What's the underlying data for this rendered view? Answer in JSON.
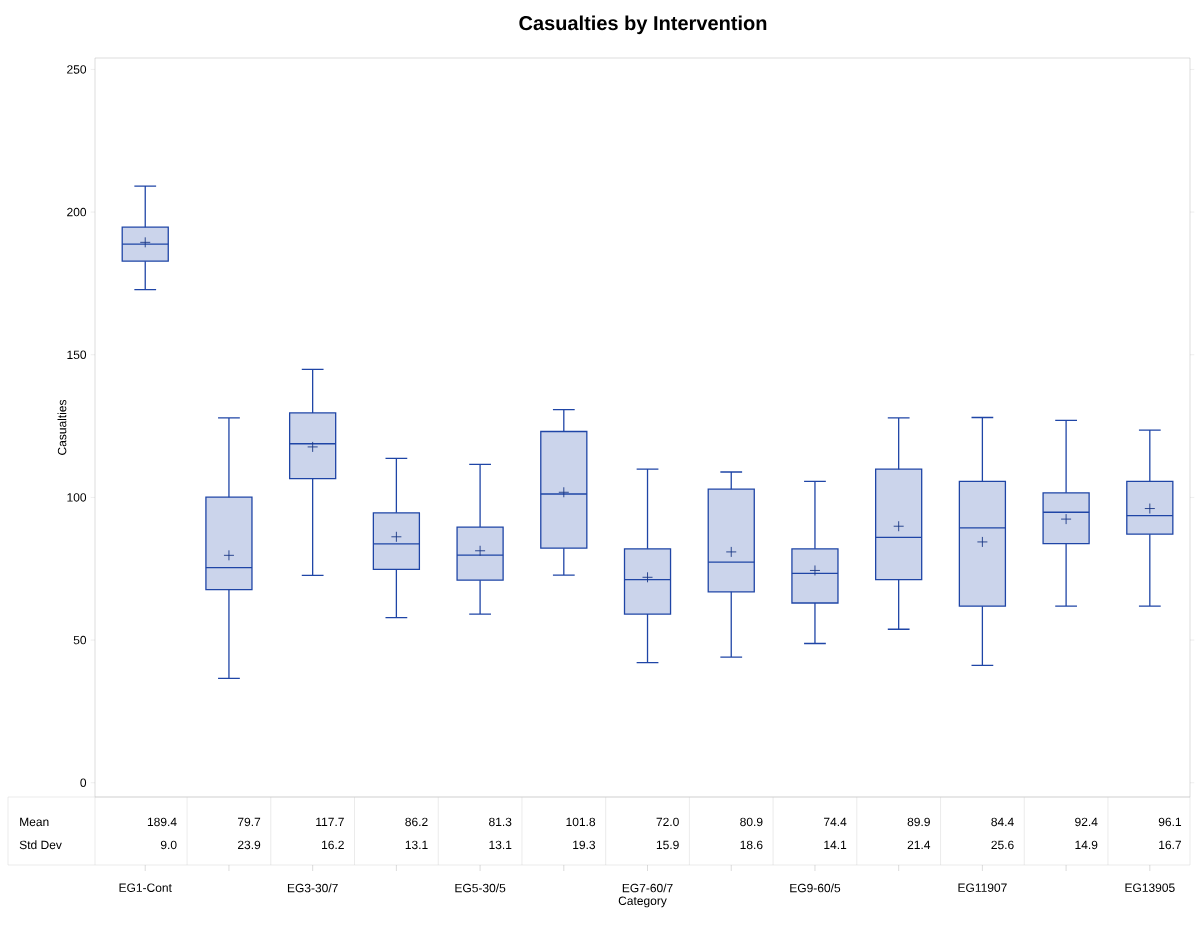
{
  "chart_data": {
    "type": "box",
    "title": "Casualties by Intervention",
    "xlabel": "Category",
    "ylabel": "Casualties",
    "categories": [
      "EG1-Cont",
      null,
      "EG3-30/7",
      null,
      "EG5-30/5",
      null,
      "EG7-60/7",
      null,
      "EG9-60/5",
      null,
      "EG11907",
      null,
      "EG13905"
    ],
    "ylim": [
      -5,
      254
    ],
    "yticks": [
      0,
      50,
      100,
      150,
      200,
      250
    ],
    "grid": false,
    "marker": "cross",
    "series": [
      {
        "color": "#1f45a6",
        "boxes": [
          {
            "low": 172.8,
            "q1": 182.8,
            "median": 188.8,
            "q3": 194.7,
            "high": 209.1,
            "mean": 189.4
          },
          {
            "low": 36.6,
            "q1": 67.7,
            "median": 75.4,
            "q3": 100.1,
            "high": 127.9,
            "mean": 79.7
          },
          {
            "low": 72.7,
            "q1": 106.6,
            "median": 118.8,
            "q3": 129.6,
            "high": 144.9,
            "mean": 117.7
          },
          {
            "low": 57.9,
            "q1": 74.8,
            "median": 83.7,
            "q3": 94.6,
            "high": 113.7,
            "mean": 86.2
          },
          {
            "low": 59.1,
            "q1": 71.0,
            "median": 79.8,
            "q3": 89.6,
            "high": 111.6,
            "mean": 81.3
          },
          {
            "low": 72.8,
            "q1": 82.2,
            "median": 101.2,
            "q3": 123.1,
            "high": 130.8,
            "mean": 101.8
          },
          {
            "low": 42.1,
            "q1": 59.1,
            "median": 71.2,
            "q3": 82.0,
            "high": 109.9,
            "mean": 72.0
          },
          {
            "low": 44.0,
            "q1": 66.9,
            "median": 77.3,
            "q3": 102.9,
            "high": 108.9,
            "mean": 80.9
          },
          {
            "low": 48.8,
            "q1": 63.0,
            "median": 73.4,
            "q3": 82.0,
            "high": 105.6,
            "mean": 74.4
          },
          {
            "low": 53.8,
            "q1": 71.2,
            "median": 86.0,
            "q3": 109.9,
            "high": 127.9,
            "mean": 89.9
          },
          {
            "low": 41.1,
            "q1": 61.9,
            "median": 89.3,
            "q3": 105.6,
            "high": 128.0,
            "mean": 84.4
          },
          {
            "low": 61.9,
            "q1": 83.8,
            "median": 94.8,
            "q3": 101.6,
            "high": 127.0,
            "mean": 92.4
          },
          {
            "low": 61.9,
            "q1": 87.1,
            "median": 93.6,
            "q3": 105.6,
            "high": 123.6,
            "mean": 96.1
          }
        ]
      }
    ],
    "annotations": [
      "Mean",
      "Std Dev",
      "189.4",
      "79.7",
      "117.7",
      "86.2",
      "81.3",
      "101.8",
      "72.0",
      "80.9",
      "74.4",
      "89.9",
      "84.4",
      "92.4",
      "96.1",
      "9.0",
      "23.9",
      "16.2",
      "13.1",
      "13.1",
      "19.3",
      "15.9",
      "18.6",
      "14.1",
      "21.4",
      "25.6",
      "14.9",
      "16.7"
    ]
  }
}
